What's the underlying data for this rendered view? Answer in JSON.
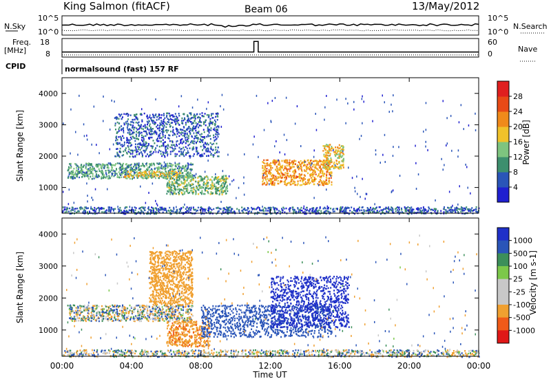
{
  "header": {
    "station": "King Salmon (fitACF)",
    "beam": "Beam 06",
    "date": "13/May/2012"
  },
  "noise_panel": {
    "left_label": "N.Sky",
    "right_label": "N.Search",
    "tick_top": "10^5",
    "tick_bottom": "10^0"
  },
  "freq_panel": {
    "label_line1": "Freq.",
    "label_line2": "[MHz]",
    "left_ticks": [
      "18",
      "8"
    ],
    "right_ticks": [
      "60",
      "0"
    ],
    "right_label": "Nave",
    "freq_level_mhz": 10,
    "freq_spike": {
      "start_hour": 11.05,
      "end_hour": 11.3,
      "value_mhz": 17
    },
    "nave_level": 3
  },
  "cpid": {
    "label": "CPID",
    "value": "normalsound (fast) 157 RF"
  },
  "axes": {
    "xlabel": "Time UT",
    "x_ticks": [
      "00:00",
      "04:00",
      "08:00",
      "12:00",
      "16:00",
      "20:00",
      "00:00"
    ],
    "ylabel": "Slant Range [km]",
    "y_ticks": [
      "1000",
      "2000",
      "3000",
      "4000"
    ]
  },
  "colors": {
    "power": [
      "#1f1fd0",
      "#2a55b8",
      "#3d8f6e",
      "#7ec47f",
      "#f0c22a",
      "#f08a1a",
      "#e84a16",
      "#e01f1f"
    ],
    "velocity": [
      "#e01818",
      "#f05a18",
      "#f0a030",
      "#c8c8c8",
      "#c8c8c8",
      "#7cc84a",
      "#3c8f5a",
      "#2a55b8",
      "#1f30c8"
    ]
  },
  "chart_data": [
    {
      "type": "heatmap",
      "title": "Power",
      "colorbar_label": "Power [dB]",
      "colorbar_ticks": [
        "4",
        "8",
        "12",
        "16",
        "20",
        "24",
        "28"
      ],
      "xlim_hours": [
        0,
        24
      ],
      "ylim_km": [
        180,
        4500
      ],
      "features": [
        {
          "start_hour": 0.3,
          "end_hour": 7.5,
          "range_km": [
            1300,
            1800
          ],
          "power_db": 11
        },
        {
          "start_hour": 3.5,
          "end_hour": 6.8,
          "range_km": [
            1350,
            1550
          ],
          "power_db": 17
        },
        {
          "start_hour": 6.0,
          "end_hour": 9.5,
          "range_km": [
            800,
            1400
          ],
          "power_db": 13
        },
        {
          "start_hour": 11.5,
          "end_hour": 15.5,
          "range_km": [
            1100,
            1900
          ],
          "power_db": 21
        },
        {
          "start_hour": 15.0,
          "end_hour": 16.2,
          "range_km": [
            1600,
            2400
          ],
          "power_db": 18
        },
        {
          "start_hour": 3.0,
          "end_hour": 9.0,
          "range_km": [
            2000,
            3400
          ],
          "power_db": 6
        },
        {
          "start_hour": 0.0,
          "end_hour": 24.0,
          "range_km": [
            180,
            400
          ],
          "power_db": 6
        }
      ]
    },
    {
      "type": "heatmap",
      "title": "Velocity",
      "colorbar_label": "Velocity [m s-1]",
      "colorbar_ticks": [
        "1000",
        "500",
        "100",
        "25",
        "-25",
        "-100",
        "-500",
        "-1000"
      ],
      "xlim_hours": [
        0,
        24
      ],
      "ylim_km": [
        180,
        4500
      ],
      "features": [
        {
          "start_hour": 0.3,
          "end_hour": 7.5,
          "range_km": [
            1300,
            1800
          ],
          "velocity_ms": 0
        },
        {
          "start_hour": 5.0,
          "end_hour": 7.5,
          "range_km": [
            1800,
            3500
          ],
          "velocity_ms": -300
        },
        {
          "start_hour": 6.0,
          "end_hour": 8.5,
          "range_km": [
            500,
            1300
          ],
          "velocity_ms": -400
        },
        {
          "start_hour": 8.0,
          "end_hour": 15.5,
          "range_km": [
            800,
            1800
          ],
          "velocity_ms": 300
        },
        {
          "start_hour": 12.0,
          "end_hour": 16.5,
          "range_km": [
            1100,
            2700
          ],
          "velocity_ms": 900
        },
        {
          "start_hour": 0.0,
          "end_hour": 24.0,
          "range_km": [
            180,
            400
          ],
          "velocity_ms": 0
        }
      ]
    }
  ]
}
